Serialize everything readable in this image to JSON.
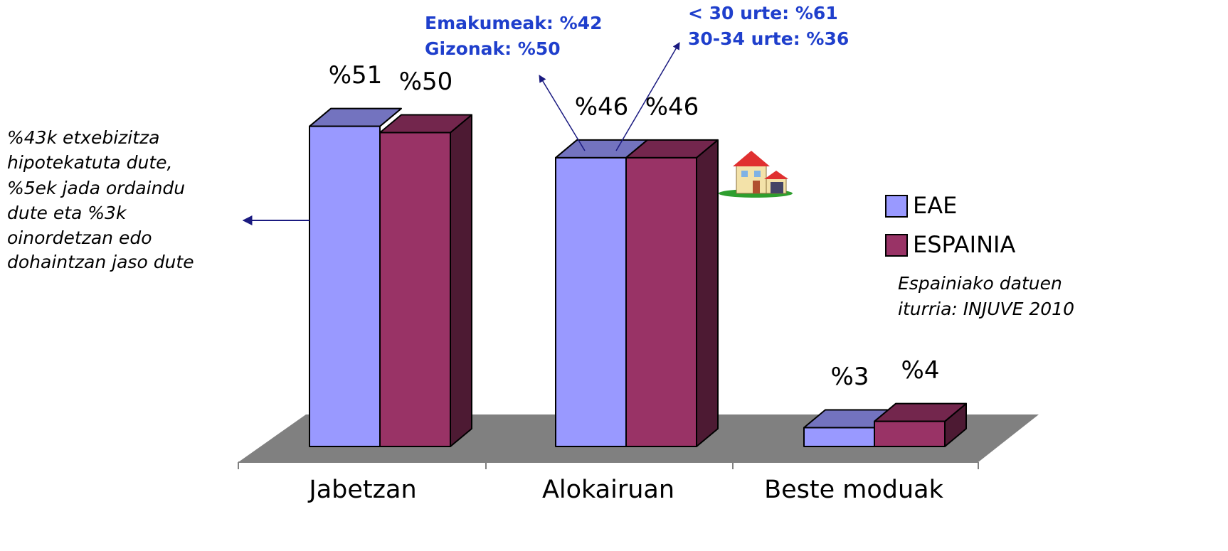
{
  "chart_data": {
    "type": "bar3d",
    "categories": [
      "Jabetzan",
      "Alokairuan",
      "Beste moduak"
    ],
    "series": [
      {
        "name": "EAE",
        "color": "#9999ff",
        "values": [
          51,
          46,
          3
        ],
        "value_labels": [
          "%51",
          "%46",
          "%3"
        ]
      },
      {
        "name": "ESPAINIA",
        "color": "#993366",
        "values": [
          50,
          46,
          4
        ],
        "value_labels": [
          "%50",
          "%46",
          "%4"
        ]
      }
    ],
    "legend": "right",
    "annotations": {
      "ownership_note": [
        "%43k etxebizitza",
        "hipotekatuta dute,",
        "%5ek jada ordaindu",
        "dute eta %3k",
        "oinordetzan edo",
        "dohaintzan jaso dute"
      ],
      "gender_note": [
        "Emakumeak: %42",
        "Gizonak: %50"
      ],
      "age_note": [
        "< 30 urte: %61",
        "30-34 urte: %36"
      ],
      "source_note": [
        "Espainiako datuen",
        "iturria: INJUVE 2010"
      ]
    }
  }
}
